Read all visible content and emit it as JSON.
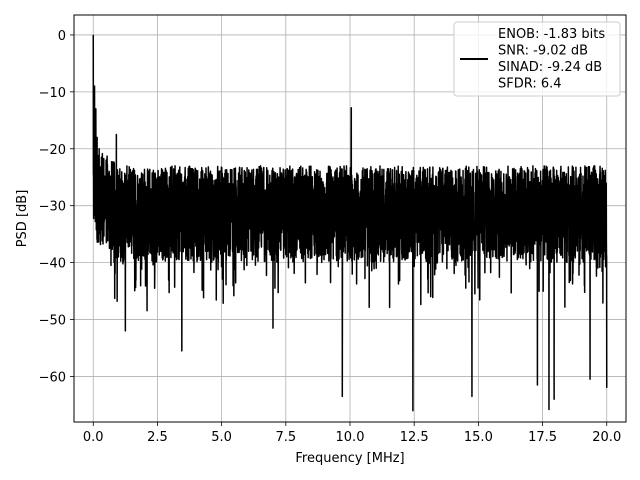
{
  "chart_data": {
    "type": "line",
    "title": "",
    "xlabel": "Frequency [MHz]",
    "ylabel": "PSD [dB]",
    "xlim": [
      -0.75,
      20.75
    ],
    "ylim": [
      -68,
      3.5
    ],
    "xticks": [
      0.0,
      2.5,
      5.0,
      7.5,
      10.0,
      12.5,
      15.0,
      17.5,
      20.0
    ],
    "xtick_labels": [
      "0.0",
      "2.5",
      "5.0",
      "7.5",
      "10.0",
      "12.5",
      "15.0",
      "17.5",
      "20.0"
    ],
    "yticks": [
      0,
      -10,
      -20,
      -30,
      -40,
      -50,
      -60
    ],
    "ytick_labels": [
      "0",
      "−10",
      "−20",
      "−30",
      "−40",
      "−50",
      "−60"
    ],
    "grid": true,
    "legend_position": "top-right",
    "legend_lines": [
      "ENOB: -1.83 bits",
      "SNR: -9.02 dB",
      "SINAD: -9.24 dB",
      "SFDR: 6.4"
    ],
    "series": [
      {
        "color": "#000000",
        "x_range": [
          0,
          20
        ],
        "num_points": 4000,
        "noise_ceiling_db": -23,
        "noise_floor_db": -40,
        "peaks": [
          {
            "x": 0.0,
            "y": 0.0
          },
          {
            "x": 0.05,
            "y": -9.0
          },
          {
            "x": 0.1,
            "y": -13.0
          },
          {
            "x": 0.15,
            "y": -18.0
          },
          {
            "x": 0.9,
            "y": -17.5
          },
          {
            "x": 10.05,
            "y": -12.8
          },
          {
            "x": 9.7,
            "y": -63.5
          },
          {
            "x": 12.45,
            "y": -66.0
          },
          {
            "x": 14.75,
            "y": -63.5
          },
          {
            "x": 17.3,
            "y": -61.5
          },
          {
            "x": 17.75,
            "y": -65.8
          },
          {
            "x": 17.95,
            "y": -64.0
          },
          {
            "x": 19.35,
            "y": -60.5
          },
          {
            "x": 20.0,
            "y": -62.0
          },
          {
            "x": 3.45,
            "y": -55.5
          },
          {
            "x": 7.0,
            "y": -51.5
          },
          {
            "x": 1.25,
            "y": -52.0
          }
        ]
      }
    ]
  }
}
